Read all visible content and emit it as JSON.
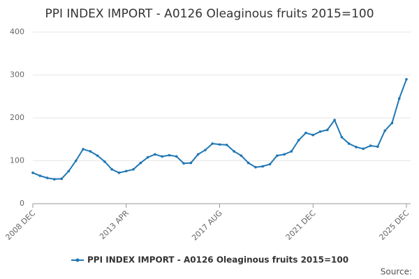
{
  "chart_data": {
    "type": "line",
    "title": "PPI INDEX IMPORT - A0126 Oleaginous fruits 2015=100",
    "source": "Source:",
    "categories": [
      "2008 DEC",
      null,
      null,
      null,
      null,
      null,
      null,
      null,
      null,
      null,
      null,
      null,
      null,
      "2013 APR",
      null,
      null,
      null,
      null,
      null,
      null,
      null,
      null,
      null,
      null,
      null,
      null,
      "2017 AUG",
      null,
      null,
      null,
      null,
      null,
      null,
      null,
      null,
      null,
      null,
      null,
      null,
      "2021 DEC",
      null,
      null,
      null,
      null,
      null,
      null,
      null,
      null,
      null,
      null,
      null,
      null,
      "2025 DEC"
    ],
    "series": [
      {
        "name": "PPI INDEX IMPORT - A0126 Oleaginous fruits 2015=100",
        "color": "#1f77b4",
        "values": [
          72,
          65,
          60,
          57,
          58,
          76,
          100,
          127,
          122,
          112,
          98,
          80,
          72,
          76,
          80,
          95,
          108,
          115,
          110,
          113,
          110,
          94,
          95,
          115,
          125,
          140,
          138,
          137,
          122,
          112,
          95,
          85,
          87,
          92,
          112,
          115,
          122,
          148,
          165,
          160,
          168,
          172,
          195,
          155,
          140,
          132,
          128,
          135,
          133,
          170,
          188,
          245,
          290
        ]
      }
    ],
    "ylim": [
      0,
      400
    ],
    "yticks": [
      0,
      100,
      200,
      300,
      400
    ],
    "grid": true,
    "legend": "bottom"
  }
}
